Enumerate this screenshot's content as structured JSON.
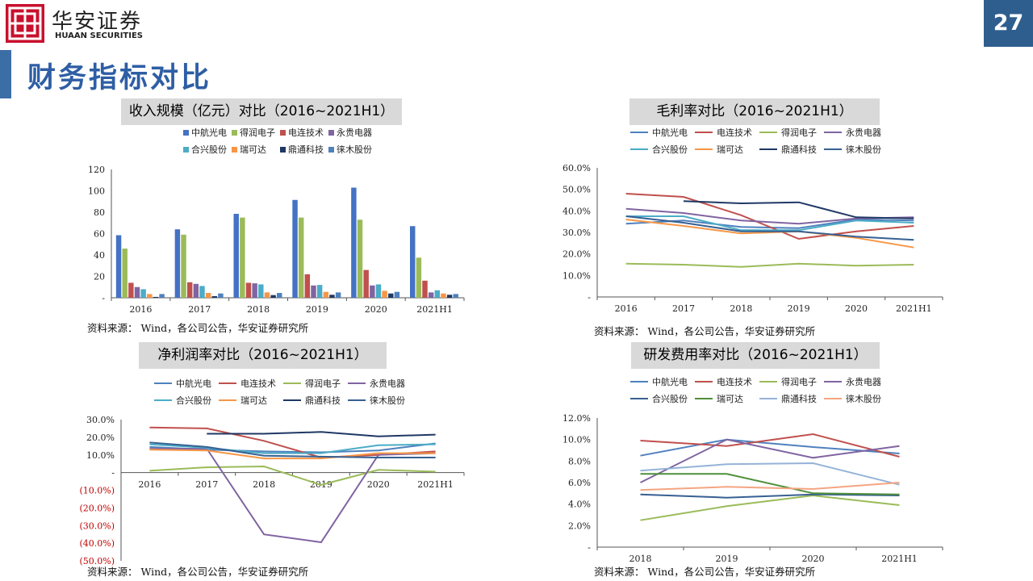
{
  "header": {
    "brand_cn": "华安证券",
    "brand_en": "HUAAN SECURITIES",
    "page_number": "27"
  },
  "page_title": "财务指标对比",
  "colors": {
    "accent": "#2e5e8e",
    "title": "#2e5ea4",
    "logo_red": "#c8102e",
    "negative_label": "#c00000"
  },
  "companies": [
    "中航光电",
    "电连技术",
    "得润电子",
    "永贵电器",
    "合兴股份",
    "瑞可达",
    "鼎通科技",
    "徕木股份"
  ],
  "source_text": "资料来源： Wind，各公司公告，华安证券研究所",
  "chart_data": [
    {
      "id": "revenue",
      "type": "bar",
      "title": "收入规模（亿元）对比（2016~2021H1）",
      "categories": [
        "2016",
        "2017",
        "2018",
        "2019",
        "2020",
        "2021H1"
      ],
      "yticks": [
        "-",
        "20",
        "40",
        "60",
        "80",
        "100",
        "120"
      ],
      "ylim": [
        0,
        120
      ],
      "legend_placement": "top",
      "series": [
        {
          "name": "中航光电",
          "color": "#4472c4",
          "values": [
            58.5,
            64,
            78.5,
            91.5,
            103,
            67
          ]
        },
        {
          "name": "得润电子",
          "color": "#9bbb59",
          "values": [
            46,
            59,
            75,
            75,
            73,
            37.5
          ]
        },
        {
          "name": "电连技术",
          "color": "#c0504d",
          "values": [
            14,
            14.5,
            14,
            22,
            26,
            16
          ]
        },
        {
          "name": "永贵电器",
          "color": "#8064a2",
          "values": [
            10,
            13,
            13.5,
            11.5,
            11.5,
            5
          ]
        },
        {
          "name": "合兴股份",
          "color": "#4bacc6",
          "values": [
            8,
            11,
            12.5,
            12,
            12.5,
            7
          ]
        },
        {
          "name": "瑞可达",
          "color": "#f79646",
          "values": [
            3.5,
            4.5,
            5,
            5.5,
            6.5,
            4
          ]
        },
        {
          "name": "鼎通科技",
          "color": "#1f3864",
          "values": [
            0.8,
            1.5,
            2.5,
            2.8,
            4,
            2.8
          ]
        },
        {
          "name": "徕木股份",
          "color": "#4f81bd",
          "values": [
            3.5,
            4,
            4.5,
            5,
            5.5,
            3.5
          ]
        }
      ]
    },
    {
      "id": "gross_margin",
      "type": "line",
      "title": "毛利率对比（2016~2021H1）",
      "categories": [
        "2016",
        "2017",
        "2018",
        "2019",
        "2020",
        "2021H1"
      ],
      "yticks": [
        "-",
        "10.0%",
        "20.0%",
        "30.0%",
        "40.0%",
        "50.0%",
        "60.0%"
      ],
      "ylim": [
        0,
        60
      ],
      "legend_placement": "top",
      "series": [
        {
          "name": "中航光电",
          "color": "#4f81bd",
          "values": [
            34,
            35.5,
            32.5,
            32,
            36,
            35.5
          ]
        },
        {
          "name": "电连技术",
          "color": "#c0504d",
          "values": [
            48,
            46.5,
            38,
            27,
            30.5,
            33
          ]
        },
        {
          "name": "得润电子",
          "color": "#9bbb59",
          "values": [
            15.5,
            15,
            14,
            15.5,
            14.5,
            15
          ]
        },
        {
          "name": "永贵电器",
          "color": "#8064a2",
          "values": [
            41,
            39,
            35.5,
            34,
            36.5,
            37
          ]
        },
        {
          "name": "合兴股份",
          "color": "#4bacc6",
          "values": [
            37.5,
            37.5,
            31,
            31,
            35.5,
            34.5
          ]
        },
        {
          "name": "瑞可达",
          "color": "#f79646",
          "values": [
            36,
            33,
            29.5,
            30.5,
            27.5,
            23
          ]
        },
        {
          "name": "鼎通科技",
          "color": "#1f3864",
          "values": [
            null,
            44.5,
            43.5,
            44,
            37,
            36.5
          ]
        },
        {
          "name": "徕木股份",
          "color": "#376092",
          "values": [
            37.5,
            34.5,
            30.5,
            30.5,
            28,
            26.5
          ]
        }
      ]
    },
    {
      "id": "net_margin",
      "type": "line",
      "title": "净利润率对比（2016~2021H1）",
      "categories": [
        "2016",
        "2017",
        "2018",
        "2019",
        "2020",
        "2021H1"
      ],
      "yticks": [
        "(50.0%)",
        "(40.0%)",
        "(30.0%)",
        "(20.0%)",
        "(10.0%)",
        "-",
        "10.0%",
        "20.0%",
        "30.0%"
      ],
      "ylim": [
        -50,
        30
      ],
      "legend_placement": "top",
      "series": [
        {
          "name": "中航光电",
          "color": "#4f81bd",
          "values": [
            14.5,
            13,
            12,
            11.5,
            12.5,
            16.5
          ]
        },
        {
          "name": "电连技术",
          "color": "#c0504d",
          "values": [
            25.5,
            25,
            18,
            8.5,
            10,
            12
          ]
        },
        {
          "name": "得润电子",
          "color": "#9bbb59",
          "values": [
            1,
            3,
            3.5,
            -7,
            1.5,
            0.5
          ]
        },
        {
          "name": "永贵电器",
          "color": "#8064a2",
          "values": [
            13.5,
            13.5,
            -35,
            -39.5,
            10,
            11
          ]
        },
        {
          "name": "合兴股份",
          "color": "#4bacc6",
          "values": [
            16,
            14,
            11,
            11,
            15.5,
            16
          ]
        },
        {
          "name": "瑞可达",
          "color": "#f79646",
          "values": [
            13,
            12.5,
            8,
            8,
            11,
            11
          ]
        },
        {
          "name": "鼎通科技",
          "color": "#1f3864",
          "values": [
            null,
            22,
            22,
            23,
            20.5,
            21.5
          ]
        },
        {
          "name": "徕木股份",
          "color": "#376092",
          "values": [
            17,
            14.5,
            9.5,
            9,
            8.5,
            8.5
          ]
        }
      ]
    },
    {
      "id": "rd_ratio",
      "type": "line",
      "title": "研发费用率对比（2016~2021H1）",
      "categories": [
        "2018",
        "2019",
        "2020",
        "2021H1"
      ],
      "yticks": [
        "-",
        "2.0%",
        "4.0%",
        "6.0%",
        "8.0%",
        "10.0%",
        "12.0%"
      ],
      "ylim": [
        0,
        12
      ],
      "legend_placement": "top",
      "series": [
        {
          "name": "中航光电",
          "color": "#4f81bd",
          "values": [
            8.5,
            10,
            9.3,
            8.7
          ]
        },
        {
          "name": "电连技术",
          "color": "#c0504d",
          "values": [
            9.9,
            9.4,
            10.5,
            8.4
          ]
        },
        {
          "name": "得润电子",
          "color": "#9bbb59",
          "values": [
            2.5,
            3.8,
            4.8,
            3.9
          ]
        },
        {
          "name": "永贵电器",
          "color": "#8064a2",
          "values": [
            6,
            10,
            8.3,
            9.4
          ]
        },
        {
          "name": "合兴股份",
          "color": "#376092",
          "values": [
            4.9,
            4.6,
            4.9,
            4.8
          ]
        },
        {
          "name": "瑞可达",
          "color": "#4f8f3a",
          "values": [
            6.8,
            6.8,
            5,
            4.9
          ]
        },
        {
          "name": "鼎通科技",
          "color": "#95b3d7",
          "values": [
            7.1,
            7.7,
            7.8,
            5.8
          ]
        },
        {
          "name": "徕木股份",
          "color": "#f4a582",
          "values": [
            5.3,
            5.6,
            5.4,
            6
          ]
        }
      ]
    }
  ]
}
